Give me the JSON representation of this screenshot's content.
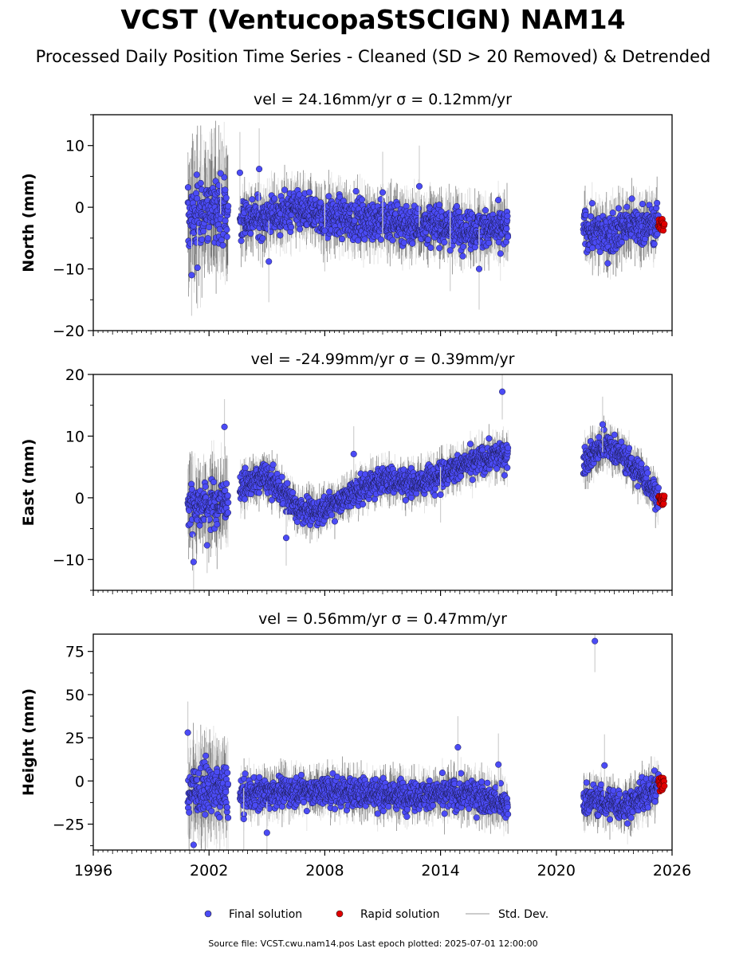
{
  "header": {
    "title": "VCST (VentucopaStSCIGN) NAM14",
    "subtitle": "Processed Daily Position Time Series - Cleaned (SD > 20 Removed) & Detrended"
  },
  "legend": {
    "final": "Final solution",
    "rapid": "Rapid solution",
    "std": "Std. Dev."
  },
  "footer": {
    "source": "Source file: VCST.cwu.nam14.pos  Last epoch plotted: 2025-07-01 12:00:00"
  },
  "colors": {
    "final": "#4b4bf5",
    "rapid": "#e00000",
    "std": "#b0b0b0"
  },
  "chart_data": [
    {
      "type": "scatter",
      "name": "north",
      "title": "vel = 24.16mm/yr   σ = 0.12mm/yr",
      "ylabel": "North (mm)",
      "xlim": [
        1996,
        2026
      ],
      "ylim": [
        -20,
        15
      ],
      "yticks": [
        10,
        0,
        -10,
        -20
      ],
      "ytick_labels": [
        "10",
        "0",
        "−10",
        "−20"
      ],
      "trend": [
        [
          2000.9,
          -2
        ],
        [
          2001.5,
          -1
        ],
        [
          2002.5,
          0
        ],
        [
          2003.6,
          -2
        ],
        [
          2005,
          -1.5
        ],
        [
          2006.5,
          -0.5
        ],
        [
          2008,
          -1.5
        ],
        [
          2010,
          -2
        ],
        [
          2012,
          -2.5
        ],
        [
          2014,
          -3
        ],
        [
          2016,
          -3.5
        ],
        [
          2017.5,
          -3.5
        ],
        [
          2021.4,
          -3.5
        ],
        [
          2022.5,
          -4.5
        ],
        [
          2023.5,
          -3
        ],
        [
          2025.5,
          -2.8
        ]
      ],
      "scatter": 2.2,
      "outliers": [
        [
          2001.1,
          -11
        ],
        [
          2001.4,
          -9.8
        ],
        [
          2002.6,
          5.5
        ],
        [
          2003.6,
          5.6
        ],
        [
          2004.6,
          6.2
        ],
        [
          2005.1,
          -8.8
        ],
        [
          2012.9,
          3.4
        ],
        [
          2011.0,
          2.4
        ],
        [
          2016.0,
          -10
        ],
        [
          2014.5,
          -7
        ],
        [
          2008.0,
          -3.8
        ]
      ],
      "rapid_x": [
        2025.3,
        2025.6
      ],
      "rapid_y": [
        -3.8,
        -1.8
      ]
    },
    {
      "type": "scatter",
      "name": "east",
      "title": "vel = -24.99mm/yr   σ = 0.39mm/yr",
      "ylabel": "East (mm)",
      "xlim": [
        1996,
        2026
      ],
      "ylim": [
        -15,
        20
      ],
      "yticks": [
        20,
        10,
        0,
        -10
      ],
      "ytick_labels": [
        "20",
        "10",
        "0",
        "−10"
      ],
      "trend": [
        [
          2000.9,
          -1
        ],
        [
          2002.5,
          -1
        ],
        [
          2003.6,
          1.5
        ],
        [
          2004.8,
          3.5
        ],
        [
          2005.5,
          2
        ],
        [
          2006.5,
          -1.5
        ],
        [
          2007.5,
          -2.5
        ],
        [
          2008.5,
          -1
        ],
        [
          2010,
          1.5
        ],
        [
          2011,
          3
        ],
        [
          2012,
          2.5
        ],
        [
          2013,
          2.5
        ],
        [
          2014,
          4
        ],
        [
          2015.5,
          5.5
        ],
        [
          2016.5,
          6.5
        ],
        [
          2017.4,
          7
        ],
        [
          2021.4,
          6
        ],
        [
          2022,
          7.5
        ],
        [
          2022.8,
          8.5
        ],
        [
          2023.5,
          6.5
        ],
        [
          2024.3,
          4
        ],
        [
          2025.5,
          -0.5
        ]
      ],
      "scatter": 1.5,
      "outliers": [
        [
          2001.2,
          -10.4
        ],
        [
          2002.8,
          11.5
        ],
        [
          2017.2,
          17.2
        ],
        [
          2009.5,
          7.1
        ],
        [
          2006.0,
          -6.5
        ],
        [
          2001.9,
          -7.7
        ],
        [
          2022.4,
          11.9
        ],
        [
          2014.0,
          0.5
        ]
      ],
      "rapid_x": [
        2025.3,
        2025.6
      ],
      "rapid_y": [
        -1.2,
        0.5
      ]
    },
    {
      "type": "scatter",
      "name": "height",
      "title": "vel = 0.56mm/yr   σ = 0.47mm/yr",
      "ylabel": "Height (mm)",
      "xlim": [
        1996,
        2026
      ],
      "ylim": [
        -40,
        85
      ],
      "yticks": [
        75,
        50,
        25,
        0,
        -25
      ],
      "ytick_labels": [
        "75",
        "50",
        "25",
        "0",
        "−25"
      ],
      "x_tick_labels": [
        "1996",
        "2002",
        "2008",
        "2014",
        "2020",
        "2026"
      ],
      "x_ticks": [
        1996,
        2002,
        2008,
        2014,
        2020,
        2026
      ],
      "trend": [
        [
          2000.9,
          -5
        ],
        [
          2002.5,
          -5
        ],
        [
          2003.6,
          -8
        ],
        [
          2006,
          -6
        ],
        [
          2008,
          -6
        ],
        [
          2010,
          -7
        ],
        [
          2012,
          -8
        ],
        [
          2014,
          -8
        ],
        [
          2016,
          -8
        ],
        [
          2017.5,
          -15
        ],
        [
          2021.4,
          -10
        ],
        [
          2022.5,
          -12
        ],
        [
          2023.5,
          -15
        ],
        [
          2024.5,
          -8
        ],
        [
          2025.5,
          -2
        ]
      ],
      "scatter": 6,
      "outliers": [
        [
          2022.0,
          81
        ],
        [
          2000.9,
          28
        ],
        [
          2014.9,
          19.5
        ],
        [
          2001.2,
          -37
        ],
        [
          2017.0,
          9.5
        ],
        [
          2022.5,
          9
        ],
        [
          2003.8,
          -22
        ],
        [
          2005.0,
          -30
        ]
      ],
      "rapid_x": [
        2025.3,
        2025.6
      ],
      "rapid_y": [
        -6,
        2
      ]
    }
  ]
}
